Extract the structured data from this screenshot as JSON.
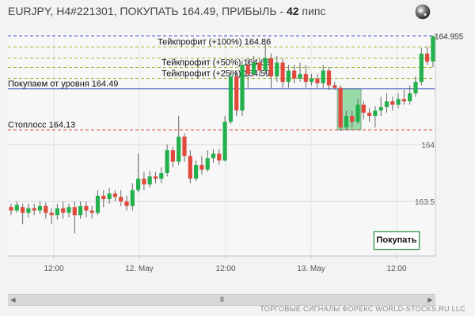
{
  "header": {
    "prefix": "EURJPY, H4#221301, ПОКУПАТЬ 164.49, ПРИБЫЛЬ - ",
    "pips": "42",
    "suffix": " пипс"
  },
  "icons": {
    "globe": "globe-icon",
    "scroll_left": "arrow-left-icon",
    "scroll_right": "arrow-right-icon",
    "scroll_thumb": "grip-icon"
  },
  "buy_button": "Покупать",
  "footer": "ТОРГОВЫЕ СИГНАЛЫ ФОРЕКС WORLD-STOCKS.RU LLC",
  "scrollbar": {
    "thumb": "III"
  },
  "chart_data": {
    "type": "candlestick",
    "colors": {
      "up": "#22b14c",
      "down": "#e0493b",
      "wick": "#666666"
    },
    "y_ticks": [
      "164",
      "163.5"
    ],
    "x_ticks": [
      "12:00",
      "12. May",
      "12:00",
      "13. May",
      "12:00"
    ],
    "last_price": "164.955",
    "levels": [
      {
        "name": "max",
        "value": 164.955,
        "label": "",
        "color": "#3344cc",
        "dash": true
      },
      {
        "name": "tp100",
        "value": 164.86,
        "label": "Тейкпрофит (+100%) 164.86",
        "color": "#99bb33",
        "dash": true
      },
      {
        "name": "tp75",
        "value": 164.765,
        "label": "",
        "color": "#99bb33",
        "dash": true
      },
      {
        "name": "tp50",
        "value": 164.68,
        "label": "Тейкпрофит (+50%) 164.68",
        "color": "#99bb33",
        "dash": true
      },
      {
        "name": "tp25",
        "value": 164.585,
        "label": "Тейкпрофит (+25%) 164.59",
        "color": "#99bb33",
        "dash": true
      },
      {
        "name": "entry",
        "value": 164.49,
        "label": "Покупаем от уровня 164.49",
        "color": "#2233aa",
        "dash": false
      },
      {
        "name": "stoploss",
        "value": 164.13,
        "label": "Стоплосс 164.13",
        "color": "#dd3333",
        "dash": true
      }
    ],
    "entry_zone": {
      "from_candle": 57,
      "to_candle": 60,
      "low": 164.13,
      "high": 164.49
    },
    "candles": [
      [
        163.45,
        163.42,
        163.48,
        163.38
      ],
      [
        163.42,
        163.47,
        163.5,
        163.4
      ],
      [
        163.45,
        163.4,
        163.48,
        163.3
      ],
      [
        163.4,
        163.44,
        163.48,
        163.36
      ],
      [
        163.44,
        163.42,
        163.48,
        163.38
      ],
      [
        163.42,
        163.46,
        163.5,
        163.39
      ],
      [
        163.46,
        163.4,
        163.49,
        163.35
      ],
      [
        163.4,
        163.38,
        163.44,
        163.3
      ],
      [
        163.38,
        163.44,
        163.48,
        163.34
      ],
      [
        163.44,
        163.4,
        163.5,
        163.35
      ],
      [
        163.4,
        163.45,
        163.48,
        163.36
      ],
      [
        163.45,
        163.38,
        163.5,
        163.22
      ],
      [
        163.38,
        163.46,
        163.5,
        163.35
      ],
      [
        163.46,
        163.42,
        163.5,
        163.36
      ],
      [
        163.42,
        163.4,
        163.46,
        163.35
      ],
      [
        163.4,
        163.55,
        163.6,
        163.38
      ],
      [
        163.55,
        163.52,
        163.6,
        163.45
      ],
      [
        163.52,
        163.57,
        163.62,
        163.48
      ],
      [
        163.57,
        163.54,
        163.6,
        163.5
      ],
      [
        163.54,
        163.5,
        163.6,
        163.46
      ],
      [
        163.5,
        163.46,
        163.55,
        163.42
      ],
      [
        163.46,
        163.6,
        163.66,
        163.42
      ],
      [
        163.6,
        163.7,
        163.92,
        163.58
      ],
      [
        163.7,
        163.65,
        163.76,
        163.6
      ],
      [
        163.65,
        163.72,
        163.77,
        163.62
      ],
      [
        163.72,
        163.7,
        163.76,
        163.66
      ],
      [
        163.7,
        163.75,
        163.8,
        163.66
      ],
      [
        163.75,
        163.95,
        164.0,
        163.72
      ],
      [
        163.95,
        163.85,
        163.98,
        163.8
      ],
      [
        163.85,
        164.07,
        164.25,
        163.82
      ],
      [
        164.07,
        163.9,
        164.1,
        163.85
      ],
      [
        163.9,
        163.7,
        163.95,
        163.66
      ],
      [
        163.7,
        163.82,
        163.86,
        163.68
      ],
      [
        163.82,
        163.78,
        163.9,
        163.74
      ],
      [
        163.78,
        163.88,
        163.95,
        163.76
      ],
      [
        163.88,
        163.92,
        163.96,
        163.84
      ],
      [
        163.92,
        163.86,
        163.96,
        163.82
      ],
      [
        163.86,
        164.2,
        164.25,
        163.85
      ],
      [
        164.2,
        164.6,
        164.65,
        164.18
      ],
      [
        164.6,
        164.3,
        164.65,
        164.25
      ],
      [
        164.3,
        164.7,
        164.74,
        164.25
      ],
      [
        164.7,
        164.62,
        164.76,
        164.5
      ],
      [
        164.62,
        164.72,
        164.78,
        164.6
      ],
      [
        164.72,
        164.65,
        164.76,
        164.6
      ],
      [
        164.65,
        164.76,
        164.9,
        164.62
      ],
      [
        164.76,
        164.6,
        164.8,
        164.5
      ],
      [
        164.6,
        164.72,
        164.78,
        164.55
      ],
      [
        164.72,
        164.55,
        164.76,
        164.5
      ],
      [
        164.55,
        164.65,
        164.7,
        164.5
      ],
      [
        164.65,
        164.58,
        164.7,
        164.54
      ],
      [
        164.58,
        164.62,
        164.72,
        164.55
      ],
      [
        164.62,
        164.55,
        164.7,
        164.5
      ],
      [
        164.55,
        164.58,
        164.62,
        164.52
      ],
      [
        164.58,
        164.54,
        164.62,
        164.5
      ],
      [
        164.54,
        164.65,
        164.7,
        164.5
      ],
      [
        164.65,
        164.52,
        164.68,
        164.48
      ],
      [
        164.52,
        164.5,
        164.55,
        164.48
      ],
      [
        164.5,
        164.15,
        164.52,
        164.12
      ],
      [
        164.15,
        164.25,
        164.3,
        164.13
      ],
      [
        164.25,
        164.2,
        164.3,
        164.15
      ],
      [
        164.2,
        164.35,
        164.4,
        164.18
      ],
      [
        164.35,
        164.28,
        164.38,
        164.22
      ],
      [
        164.28,
        164.25,
        164.32,
        164.2
      ],
      [
        164.25,
        164.3,
        164.34,
        164.15
      ],
      [
        164.3,
        164.33,
        164.42,
        164.25
      ],
      [
        164.33,
        164.38,
        164.45,
        164.28
      ],
      [
        164.38,
        164.35,
        164.42,
        164.3
      ],
      [
        164.35,
        164.4,
        164.45,
        164.32
      ],
      [
        164.4,
        164.38,
        164.48,
        164.35
      ],
      [
        164.38,
        164.45,
        164.52,
        164.35
      ],
      [
        164.45,
        164.55,
        164.6,
        164.42
      ],
      [
        164.55,
        164.8,
        164.85,
        164.52
      ],
      [
        164.8,
        164.73,
        164.86,
        164.7
      ],
      [
        164.73,
        164.95,
        164.96,
        164.68
      ]
    ]
  }
}
